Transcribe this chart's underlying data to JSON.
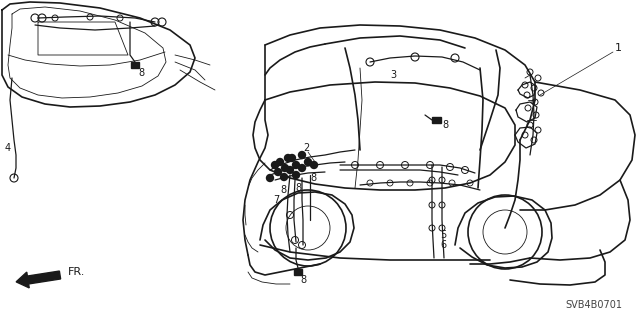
{
  "bg_color": "#ffffff",
  "line_color": "#1a1a1a",
  "diagram_code": "SVB4B0701",
  "fr_label": "FR.",
  "figsize": [
    6.4,
    3.19
  ],
  "dpi": 100,
  "lw_body": 1.2,
  "lw_wire": 0.9,
  "lw_thin": 0.6,
  "label_fs": 7
}
